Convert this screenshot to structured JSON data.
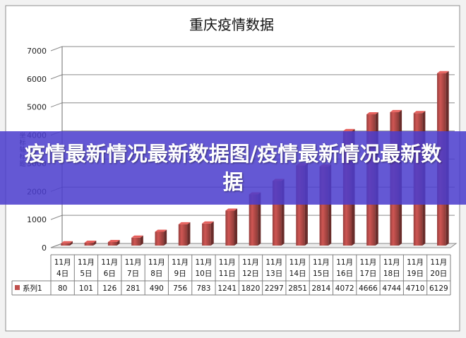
{
  "overlay": {
    "headline": "疫情最新情况最新数据图/疫情最新情况最新数据"
  },
  "chart_data": {
    "type": "bar",
    "title": "重庆疫情数据",
    "ylabel": "坐标轴标题",
    "xlabel": "",
    "ylim": [
      0,
      7000
    ],
    "yticks": [
      0,
      1000,
      2000,
      3000,
      4000,
      5000,
      6000,
      7000
    ],
    "grid": true,
    "categories": [
      [
        "11月",
        "4日"
      ],
      [
        "11月",
        "5日"
      ],
      [
        "11月",
        "6日"
      ],
      [
        "11月",
        "7日"
      ],
      [
        "11月",
        "8日"
      ],
      [
        "11月",
        "9日"
      ],
      [
        "11月",
        "10日"
      ],
      [
        "11月",
        "11日"
      ],
      [
        "11月",
        "12日"
      ],
      [
        "11月",
        "13日"
      ],
      [
        "11月",
        "14日"
      ],
      [
        "11月",
        "15日"
      ],
      [
        "11月",
        "16日"
      ],
      [
        "11月",
        "17日"
      ],
      [
        "11月",
        "18日"
      ],
      [
        "11月",
        "19日"
      ],
      [
        "11月",
        "20日"
      ]
    ],
    "series": [
      {
        "name": "系列1",
        "color": "#c0504d",
        "values": [
          80,
          101,
          126,
          281,
          490,
          756,
          783,
          1241,
          1820,
          2297,
          2851,
          2814,
          4072,
          4666,
          4744,
          4710,
          6129
        ]
      }
    ],
    "data_table": true
  }
}
